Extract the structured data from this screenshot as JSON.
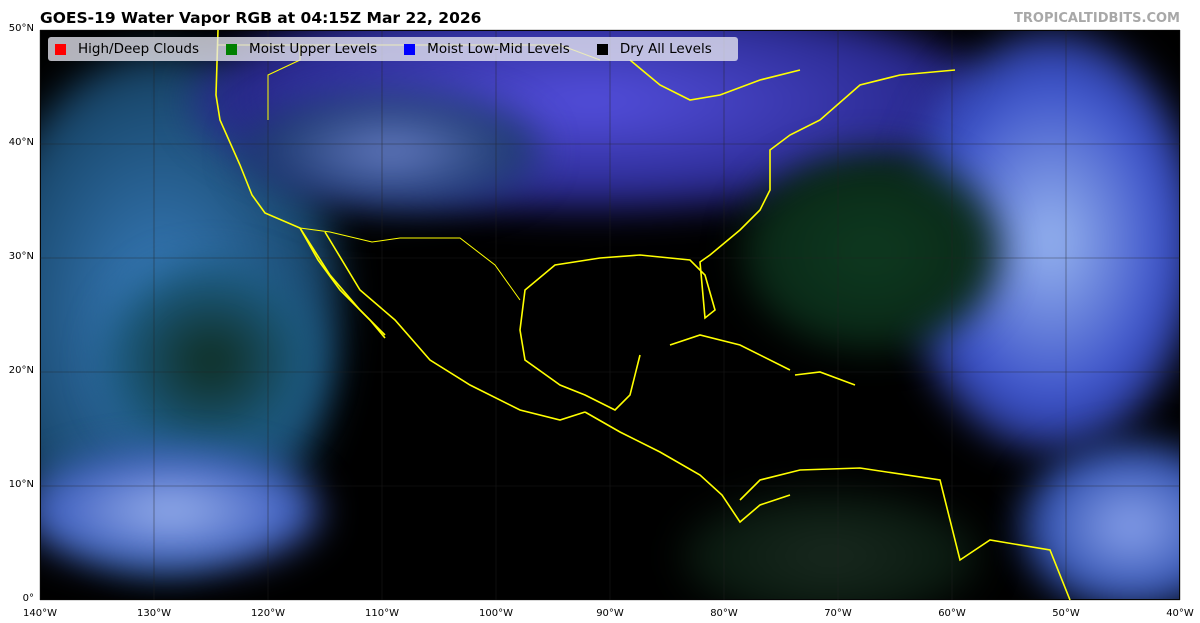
{
  "title": "GOES-19 Water Vapor RGB at 04:15Z Mar 22, 2026",
  "brand": "TROPICALTIDBITS.COM",
  "legend": [
    {
      "label": "High/Deep Clouds",
      "color": "#ff0000"
    },
    {
      "label": "Moist Upper Levels",
      "color": "#008000"
    },
    {
      "label": "Moist Low-Mid Levels",
      "color": "#0000ff"
    },
    {
      "label": "Dry All Levels",
      "color": "#000000"
    }
  ],
  "lat_labels": [
    "50°N",
    "40°N",
    "30°N",
    "20°N",
    "10°N",
    "0°"
  ],
  "lon_labels": [
    "140°W",
    "130°W",
    "120°W",
    "110°W",
    "100°W",
    "90°W",
    "80°W",
    "70°W",
    "60°W",
    "50°W",
    "40°W"
  ],
  "coastline_color": "#ffff00"
}
